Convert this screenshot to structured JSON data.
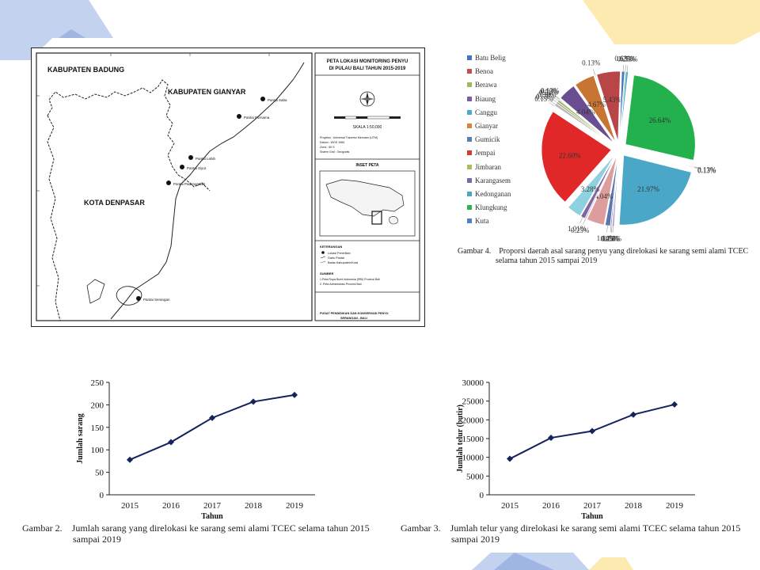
{
  "map": {
    "title_line1": "PETA LOKASI MONITORING PENYU",
    "title_line2": "DI PULAU BALI TAHUN 2015-2019",
    "regions": {
      "badung": "KABUPATEN BADUNG",
      "gianyar": "KABUPATEN GIANYAR",
      "denpasar": "KOTA DENPASAR"
    },
    "sites": [
      {
        "label": "Pantai Saba",
        "id": "saba"
      },
      {
        "label": "Pantai Purnama",
        "id": "purnama"
      },
      {
        "label": "Pantai Lebih",
        "id": "lebih"
      },
      {
        "label": "Pantai Siyut",
        "id": "siyut"
      },
      {
        "label": "Pantai Padanggalak",
        "id": "padanggalak"
      },
      {
        "label": "Pantai Serangan",
        "id": "serangan"
      }
    ],
    "scale_label": "SKALA 1:50.000",
    "projection": {
      "line1": "Proyeksi   : Universal Traverse Mercator (UTM)",
      "line2": "Datum      : WGS 1984",
      "line3": "Zona        : 50 S",
      "line4": "Sistem Grid : Geografis"
    },
    "inset_title": "INSET PETA",
    "keterangan_title": "KETERANGAN",
    "keterangan_items": [
      "Lokasi Penelitian",
      "Garis Pantai",
      "Batas Kabupaten/Kota"
    ],
    "sumber_title": "SUMBER",
    "sumber_items": [
      "1.Peta Rupa Bumi Indonesia (RBI) Provinsi Bali",
      "2. Peta Administrasi Provinsi Bali"
    ],
    "footer_line1": "PUSAT PENDIDIKAN DAN KONSERVASI PENYU",
    "footer_line2": "SERANGAN - BALI"
  },
  "pie": {
    "caption_label": "Gambar 4.",
    "caption_text": "Proporsi daerah asal sarang penyu yang direlokasi ke sarang semi alami TCEC",
    "caption_text2": "selama tahun 2015 sampai 2019",
    "legend": [
      {
        "name": "Batu Belig",
        "color": "#4472c4"
      },
      {
        "name": "Benoa",
        "color": "#c0504d"
      },
      {
        "name": "Berawa",
        "color": "#9bbb59"
      },
      {
        "name": "Biaung",
        "color": "#7d5fa0"
      },
      {
        "name": "Canggu",
        "color": "#4bacc6"
      },
      {
        "name": "Gianyar",
        "color": "#d9823b"
      },
      {
        "name": "Gumicik",
        "color": "#5a7fb5"
      },
      {
        "name": "Jempai",
        "color": "#d33a36"
      },
      {
        "name": "Jimbaran",
        "color": "#a5bf5b"
      },
      {
        "name": "Karangasem",
        "color": "#7b68a6"
      },
      {
        "name": "Kedonganan",
        "color": "#4aa7c0"
      },
      {
        "name": "Klungkung",
        "color": "#2fb34a"
      },
      {
        "name": "Kuta",
        "color": "#4f7fc4"
      }
    ],
    "slices": [
      {
        "label": "26.64%",
        "value": 26.64,
        "color": "#22b14c"
      },
      {
        "label": "0.13%",
        "value": 0.13,
        "color": "#7f4fa0"
      },
      {
        "label": "0.13%",
        "value": 0.13,
        "color": "#c0504d"
      },
      {
        "label": "21.97%",
        "value": 21.97,
        "color": "#4aa7c8"
      },
      {
        "label": "0.38%",
        "value": 0.38,
        "color": "#9b8fc0"
      },
      {
        "label": "0.13%",
        "value": 0.13,
        "color": "#c9a3a3"
      },
      {
        "label": "0.25%",
        "value": 0.25,
        "color": "#7f7fbf"
      },
      {
        "label": "1.14%",
        "value": 1.14,
        "color": "#5b76b0"
      },
      {
        "label": "4.04%",
        "value": 4.04,
        "color": "#dc9d9c"
      },
      {
        "label": "0.25%",
        "value": 0.25,
        "color": "#a0a0a0"
      },
      {
        "label": "1.01%",
        "value": 1.01,
        "color": "#8064a2"
      },
      {
        "label": "3.28%",
        "value": 3.28,
        "color": "#8fd1e0"
      },
      {
        "label": "22.60%",
        "value": 22.6,
        "color": "#e02828"
      },
      {
        "label": "0.13%",
        "value": 0.13,
        "color": "#c9b7a0"
      },
      {
        "label": "0.63%",
        "value": 0.63,
        "color": "#b7b7b7"
      },
      {
        "label": "0.38%",
        "value": 0.38,
        "color": "#a69a8f"
      },
      {
        "label": "0.51%",
        "value": 0.51,
        "color": "#9bbb59"
      },
      {
        "label": "0.13%",
        "value": 0.13,
        "color": "#4472c4"
      },
      {
        "label": "0.13%",
        "value": 0.13,
        "color": "#7d5fa0"
      },
      {
        "label": "4.04%",
        "value": 4.04,
        "color": "#6a4e91"
      },
      {
        "label": "4.67%",
        "value": 4.67,
        "color": "#c87533"
      },
      {
        "label": "0.13%",
        "value": 0.13,
        "color": "#5a7fb5"
      },
      {
        "label": "5.43%",
        "value": 5.43,
        "color": "#b94646"
      },
      {
        "label": "0.63%",
        "value": 0.63,
        "color": "#4472c4"
      },
      {
        "label": "0.25%",
        "value": 0.25,
        "color": "#9bbb59"
      },
      {
        "label": "0.51%",
        "value": 0.51,
        "color": "#4bacc6"
      }
    ]
  },
  "chart_data": [
    {
      "type": "line",
      "title": "",
      "xlabel": "Tahun",
      "ylabel": "Jumlah sarang",
      "x": [
        "2015",
        "2016",
        "2017",
        "2018",
        "2019"
      ],
      "values": [
        78,
        117,
        171,
        207,
        222
      ],
      "ylim": [
        0,
        250
      ],
      "yticks": [
        "0",
        "50",
        "100",
        "150",
        "200",
        "250"
      ],
      "grid": false,
      "color": "#14235e",
      "caption_label": "Gambar 2.",
      "caption_text": "Jumlah sarang yang direlokasi ke sarang semi alami TCEC selama tahun 2015",
      "caption_text2": "sampai 2019"
    },
    {
      "type": "line",
      "title": "",
      "xlabel": "Tahun",
      "ylabel": "Jumlah telur (butir)",
      "x": [
        "2015",
        "2016",
        "2017",
        "2018",
        "2019"
      ],
      "values": [
        9600,
        15200,
        17000,
        21400,
        24100
      ],
      "ylim": [
        0,
        30000
      ],
      "yticks": [
        "0",
        "5000",
        "10000",
        "15000",
        "20000",
        "25000",
        "30000"
      ],
      "grid": false,
      "color": "#14235e",
      "caption_label": "Gambar 3.",
      "caption_text": "Jumlah telur yang direlokasi ke sarang semi alami TCEC selama tahun 2015",
      "caption_text2": "sampai 2019"
    }
  ],
  "colors": {
    "deco_blue": "#c3d2ee",
    "deco_yellow": "#fdeab0",
    "deco_blue_dark": "#9fb6e3"
  }
}
